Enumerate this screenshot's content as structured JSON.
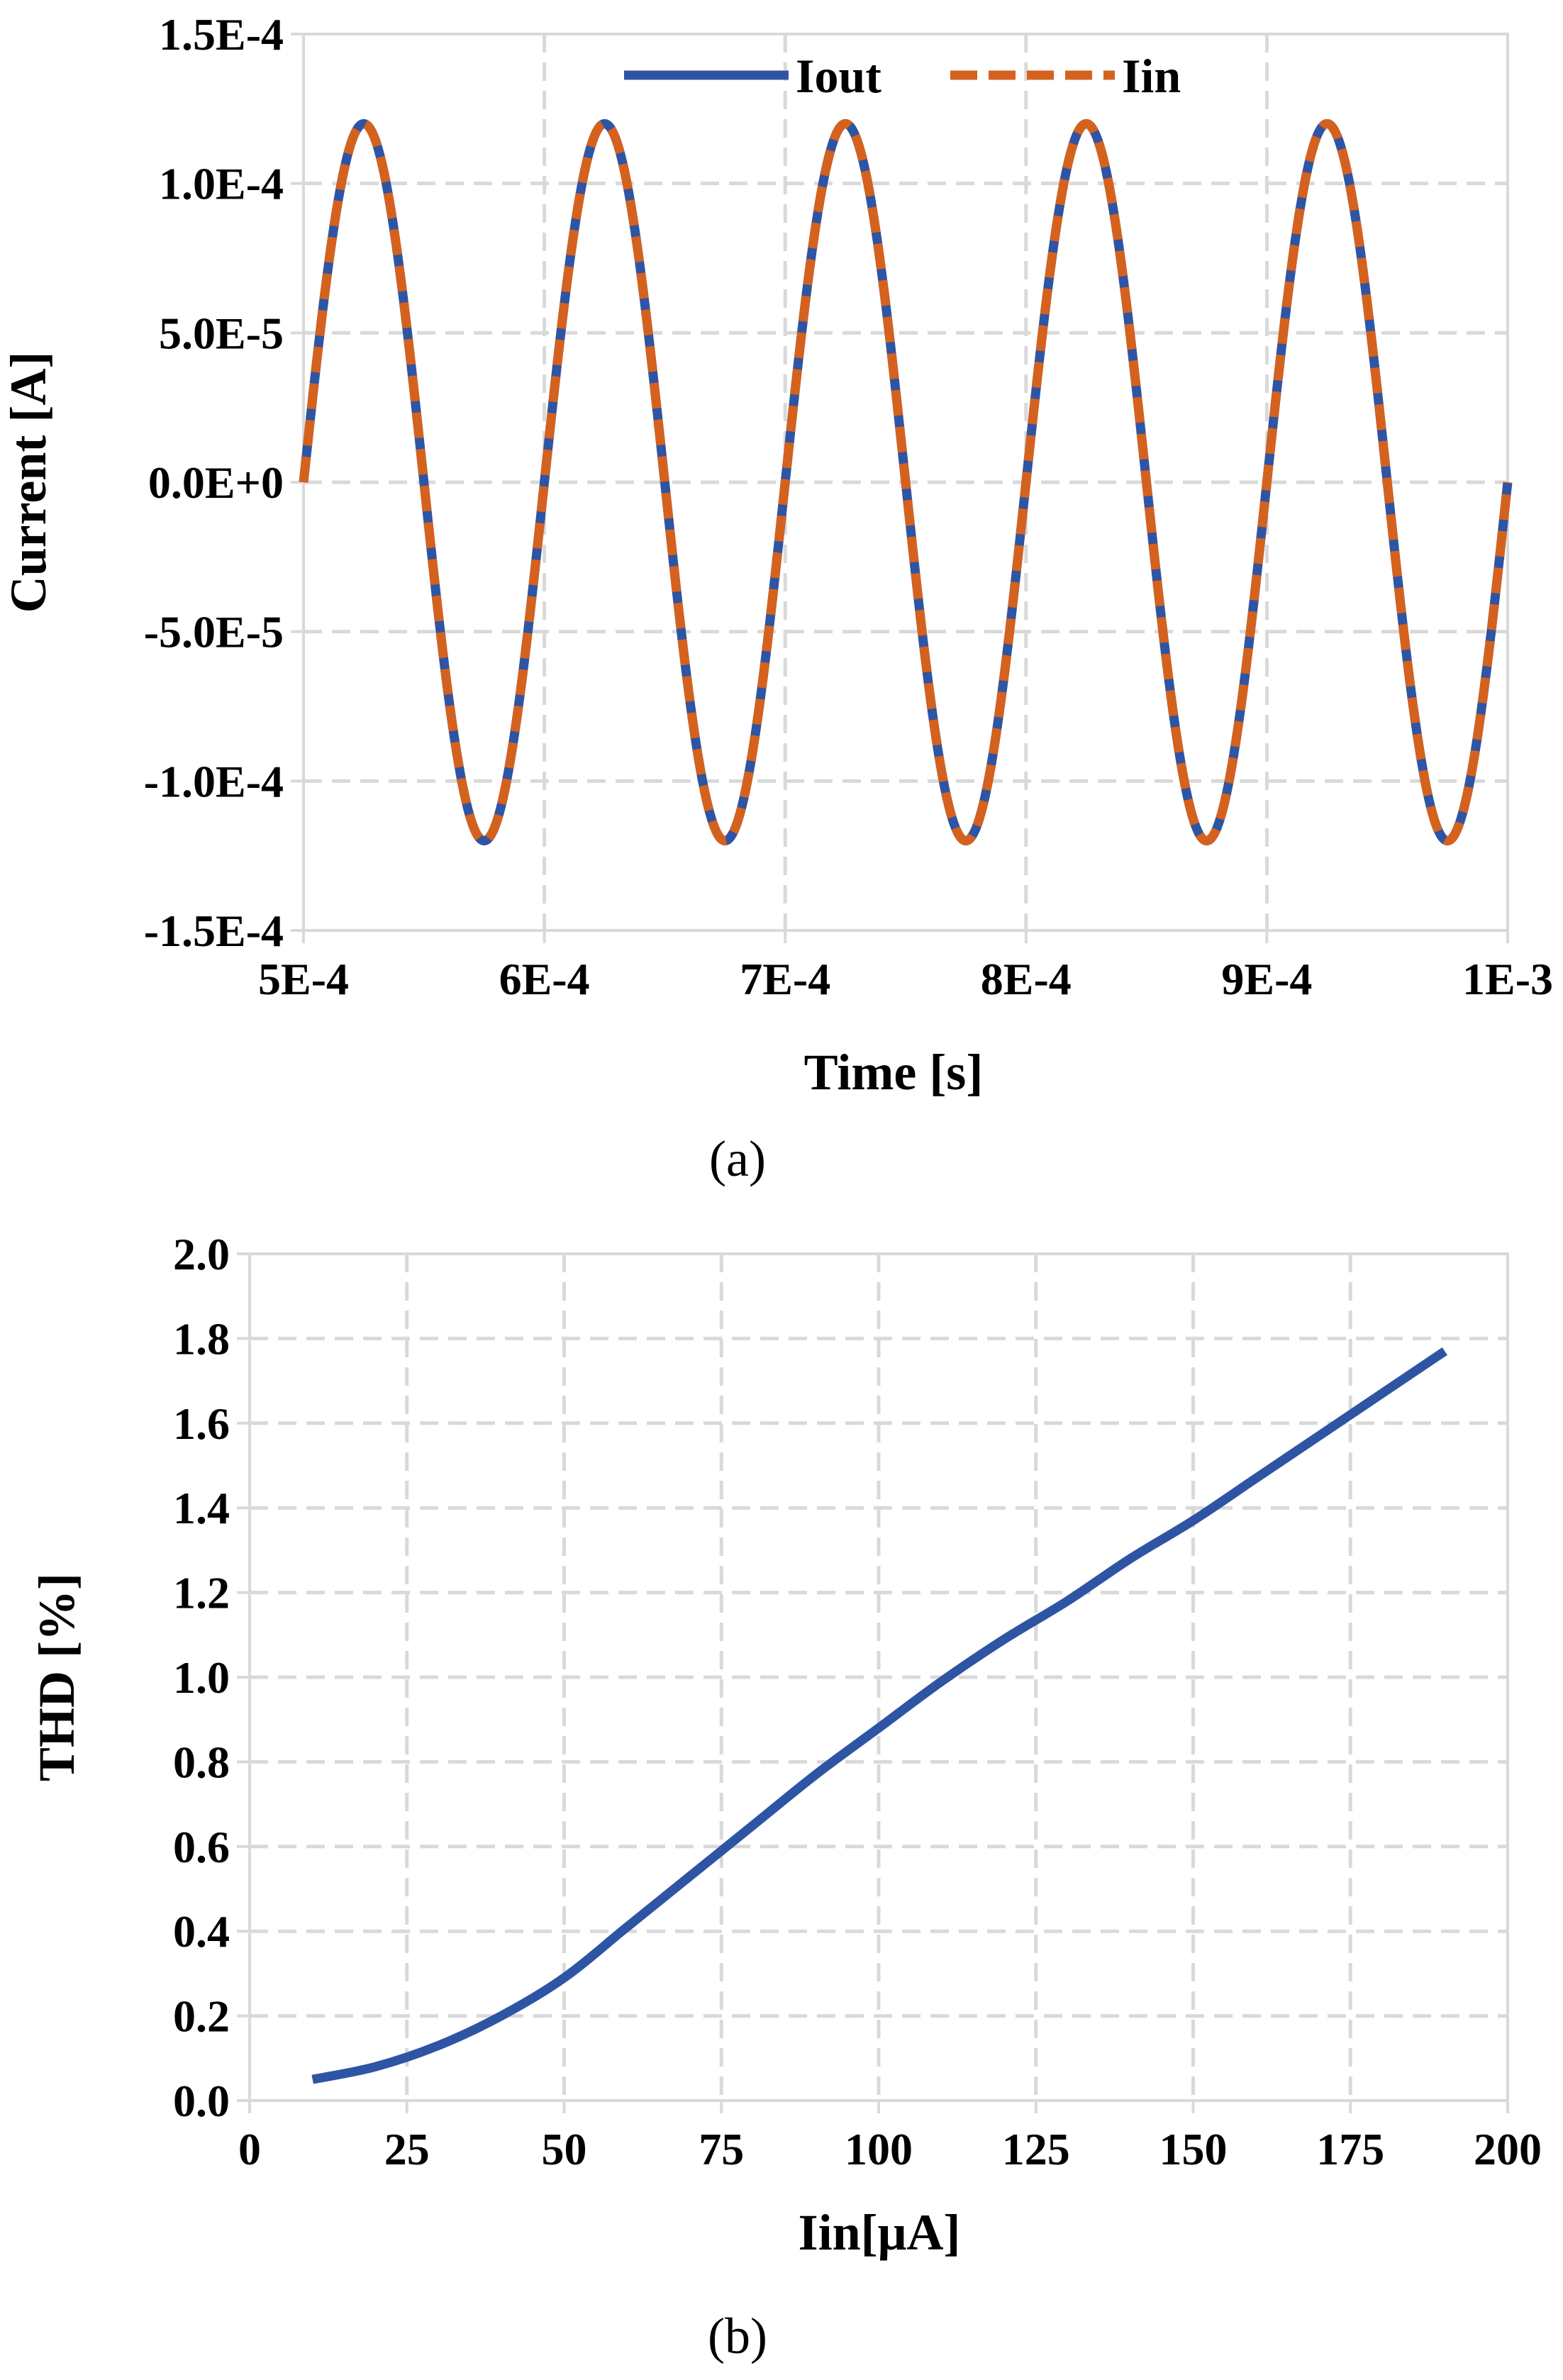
{
  "colors": {
    "iout": "#2E54A4",
    "iin": "#D4621E",
    "thd": "#2E54A4",
    "grid": "#D9D9D9",
    "frame": "#D9D9D9"
  },
  "chart_data": [
    {
      "type": "line",
      "caption": "(a)",
      "xlabel": "Time [s]",
      "ylabel": "Current [A]",
      "xlim": [
        0.0005,
        0.001
      ],
      "ylim": [
        -0.00015,
        0.00015
      ],
      "x_ticks": [
        0.0005,
        0.0006,
        0.0007,
        0.0008,
        0.0009,
        0.001
      ],
      "x_tick_labels": [
        "5E-4",
        "6E-4",
        "7E-4",
        "8E-4",
        "9E-4",
        "1E-3"
      ],
      "y_ticks": [
        0.00015,
        0.0001,
        5e-05,
        0,
        -5e-05,
        -0.0001,
        -0.00015
      ],
      "y_tick_labels": [
        "1.5E-4",
        "1.0E-4",
        "5.0E-5",
        "0.0E+0",
        "-5.0E-5",
        "-1.0E-4",
        "-1.5E-4"
      ],
      "grid": true,
      "legend_position": "top-center",
      "series": [
        {
          "name": "Iout",
          "style": "solid",
          "x": [
            0.0005,
            0.000525,
            0.00055,
            0.000575,
            0.0006,
            0.000625,
            0.00065,
            0.000675,
            0.0007,
            0.000725,
            0.00075,
            0.000775,
            0.0008,
            0.000825,
            0.00085,
            0.000875,
            0.0009,
            0.000925,
            0.00095,
            0.000975,
            0.001
          ],
          "y": [
            0,
            0.00012,
            0,
            -0.00012,
            0,
            0.00012,
            0,
            -0.00012,
            0,
            0.00012,
            0,
            -0.00012,
            0,
            0.00012,
            0,
            -0.00012,
            0,
            0.00012,
            0,
            -0.00012,
            0
          ]
        },
        {
          "name": "Iin",
          "style": "dashed",
          "x": [
            0.0005,
            0.000525,
            0.00055,
            0.000575,
            0.0006,
            0.000625,
            0.00065,
            0.000675,
            0.0007,
            0.000725,
            0.00075,
            0.000775,
            0.0008,
            0.000825,
            0.00085,
            0.000875,
            0.0009,
            0.000925,
            0.00095,
            0.000975,
            0.001
          ],
          "y": [
            0,
            0.00012,
            0,
            -0.00012,
            0,
            0.00012,
            0,
            -0.00012,
            0,
            0.00012,
            0,
            -0.00012,
            0,
            0.00012,
            0,
            -0.00012,
            0,
            0.00012,
            0,
            -0.00012,
            0
          ]
        }
      ]
    },
    {
      "type": "line",
      "caption": "(b)",
      "xlabel": "Iin[μA]",
      "ylabel": "THD [%]",
      "xlim": [
        0,
        200
      ],
      "ylim": [
        0,
        2.0
      ],
      "x_ticks": [
        0,
        25,
        50,
        75,
        100,
        125,
        150,
        175,
        200
      ],
      "x_tick_labels": [
        "0",
        "25",
        "50",
        "75",
        "100",
        "125",
        "150",
        "175",
        "200"
      ],
      "y_ticks": [
        0.0,
        0.2,
        0.4,
        0.6,
        0.8,
        1.0,
        1.2,
        1.4,
        1.6,
        1.8,
        2.0
      ],
      "y_tick_labels": [
        "0.0",
        "0.2",
        "0.4",
        "0.6",
        "0.8",
        "1.0",
        "1.2",
        "1.4",
        "1.6",
        "1.8",
        "2.0"
      ],
      "grid": true,
      "series": [
        {
          "x": [
            10,
            20,
            30,
            40,
            50,
            60,
            70,
            80,
            90,
            100,
            110,
            120,
            130,
            140,
            150,
            160,
            170,
            180,
            190
          ],
          "y": [
            0.05,
            0.08,
            0.13,
            0.2,
            0.29,
            0.41,
            0.53,
            0.65,
            0.77,
            0.88,
            0.99,
            1.09,
            1.18,
            1.28,
            1.37,
            1.47,
            1.57,
            1.67,
            1.77
          ]
        }
      ]
    }
  ]
}
